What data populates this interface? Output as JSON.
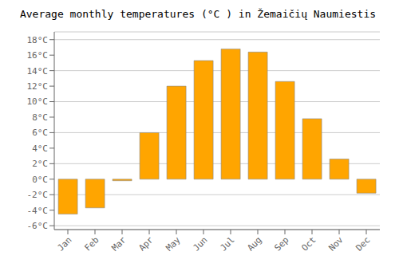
{
  "chart_data": {
    "type": "bar",
    "title": "Average monthly temperatures (°C ) in Žemaičių Naumiestis",
    "categories": [
      "Jan",
      "Feb",
      "Mar",
      "Apr",
      "May",
      "Jun",
      "Jul",
      "Aug",
      "Sep",
      "Oct",
      "Nov",
      "Dec"
    ],
    "values": [
      -4.5,
      -3.7,
      -0.2,
      6.0,
      12.0,
      15.3,
      16.8,
      16.4,
      12.6,
      7.8,
      2.6,
      -1.8
    ],
    "color": "#FFA500",
    "ylim": [
      -6.5,
      19
    ],
    "yticks": [
      {
        "value": -6,
        "label": "-6°C"
      },
      {
        "value": -4,
        "label": "-4°C"
      },
      {
        "value": -2,
        "label": "-2°C"
      },
      {
        "value": 0,
        "label": "0°C"
      },
      {
        "value": 2,
        "label": "2°C"
      },
      {
        "value": 4,
        "label": "4°C"
      },
      {
        "value": 6,
        "label": "6°C"
      },
      {
        "value": 8,
        "label": "8°C"
      },
      {
        "value": 10,
        "label": "10°C"
      },
      {
        "value": 12,
        "label": "12°C"
      },
      {
        "value": 14,
        "label": "14°C"
      },
      {
        "value": 16,
        "label": "16°C"
      },
      {
        "value": 18,
        "label": "18°C"
      }
    ],
    "grid": true
  }
}
